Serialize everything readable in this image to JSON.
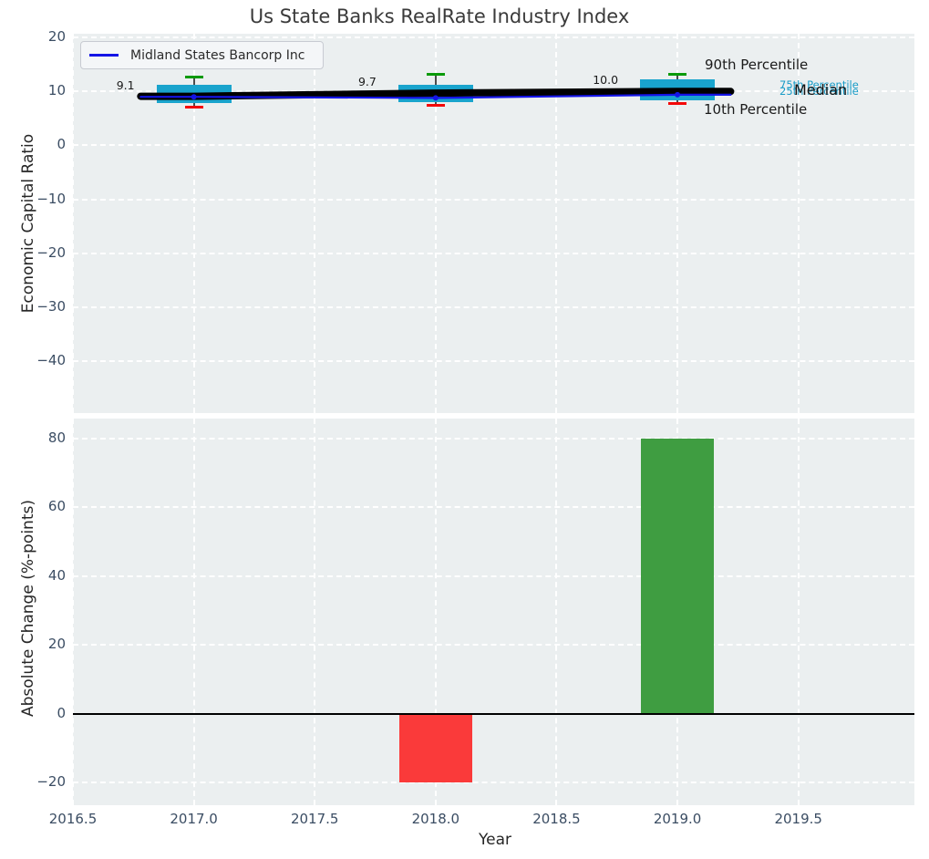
{
  "title": "Us State Banks RealRate Industry Index",
  "legend": {
    "label": "Midland States Bancorp Inc"
  },
  "percentile_labels": {
    "p90": "90th Percentile",
    "p75": "75th Percentile",
    "median": "Median",
    "p25": "25th Percentile",
    "p10": "10th Percentile"
  },
  "colors": {
    "axes_bg": "#ebeff0",
    "grid": "#ffffff",
    "box_fill": "#19a4cd",
    "cap_top": "#0a9a0a",
    "cap_bottom": "#f40808",
    "whisker": "#4d4d4d",
    "median_line": "#000000",
    "company_line": "#1414e6",
    "bar_negative": "#fa3a3a",
    "bar_positive": "#3f9d41",
    "zero_line": "#000000",
    "tick_label": "#3b4d63",
    "cyan_label": "#1a9cc7",
    "annotation": "#1a1a1a"
  },
  "chart_data": [
    {
      "type": "boxplot",
      "title": "Us State Banks RealRate Industry Index",
      "ylabel": "Economic Capital Ratio",
      "xlim": [
        2016.5,
        2019.98
      ],
      "ylim": [
        -49.6,
        20.7
      ],
      "yticks": [
        20,
        10,
        0,
        -10,
        -20,
        -30,
        -40
      ],
      "xgrid": [
        2016.5,
        2017,
        2017.5,
        2018,
        2018.5,
        2019,
        2019.5
      ],
      "years": [
        2017,
        2018,
        2019
      ],
      "p90": [
        12.6,
        13.2,
        13.2
      ],
      "p75": [
        11.3,
        11.2,
        12.2
      ],
      "median": [
        9.1,
        9.7,
        10.0
      ],
      "p25": [
        7.8,
        8.0,
        8.3
      ],
      "p10": [
        7.1,
        7.5,
        7.8
      ],
      "median_annotations": [
        "9.1",
        "9.7",
        "10.0"
      ],
      "company": {
        "name": "Midland States Bancorp Inc",
        "values": [
          9.0,
          8.8,
          9.4
        ]
      },
      "line_extension_years": 0.22,
      "box_width_years": 0.31,
      "cap_width_years": 0.075,
      "legend_position": "upper left",
      "grid": true
    },
    {
      "type": "bar",
      "ylabel": "Absolute Change (%-points)",
      "xlabel": "Year",
      "xlim": [
        2016.5,
        2019.98
      ],
      "ylim": [
        -26.5,
        85.7
      ],
      "yticks": [
        80,
        60,
        40,
        20,
        0,
        -20
      ],
      "xgrid": [
        2016.5,
        2017,
        2017.5,
        2018,
        2018.5,
        2019,
        2019.5
      ],
      "xticks": [
        2016.5,
        2017,
        2017.5,
        2018,
        2018.5,
        2019,
        2019.5
      ],
      "xtick_labels": [
        "2016.5",
        "2017.0",
        "2017.5",
        "2018.0",
        "2018.5",
        "2019.0",
        "2019.5"
      ],
      "bars": [
        {
          "x": 2018,
          "value": -19.9,
          "color_key": "bar_negative"
        },
        {
          "x": 2019,
          "value": 80.0,
          "color_key": "bar_positive"
        }
      ],
      "bar_width_years": 0.3,
      "zero_line": 0,
      "grid": true
    }
  ]
}
